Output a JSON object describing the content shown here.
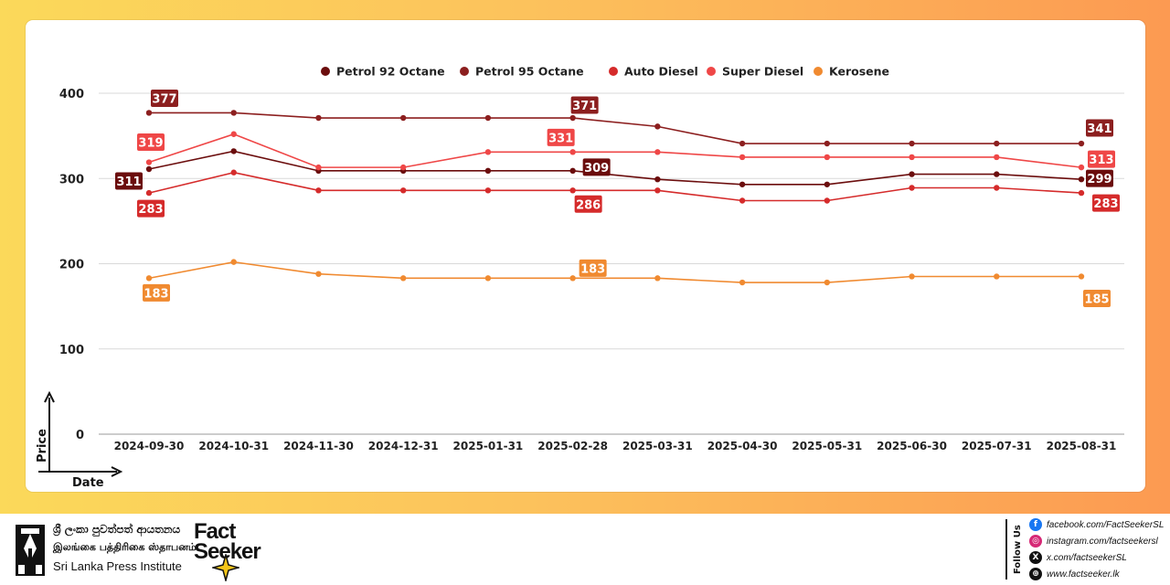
{
  "chart_data": {
    "type": "line",
    "x": [
      "2024-09-30",
      "2024-10-31",
      "2024-11-30",
      "2024-12-31",
      "2025-01-31",
      "2025-02-28",
      "2025-03-31",
      "2025-04-30",
      "2025-05-31",
      "2025-06-30",
      "2025-07-31",
      "2025-08-31"
    ],
    "series": [
      {
        "name": "Petrol 92 Octane",
        "color": "#6b0d0d",
        "values": [
          311,
          332,
          309,
          309,
          309,
          309,
          299,
          293,
          293,
          305,
          305,
          299
        ]
      },
      {
        "name": "Petrol 95 Octane",
        "color": "#8c1f1f",
        "values": [
          377,
          377,
          371,
          371,
          371,
          371,
          361,
          341,
          341,
          341,
          341,
          341
        ]
      },
      {
        "name": "Auto Diesel",
        "color": "#d52b2b",
        "values": [
          283,
          307,
          286,
          286,
          286,
          286,
          286,
          274,
          274,
          289,
          289,
          283
        ]
      },
      {
        "name": "Super Diesel",
        "color": "#ef4747",
        "values": [
          319,
          352,
          313,
          313,
          331,
          331,
          331,
          325,
          325,
          325,
          325,
          313
        ]
      },
      {
        "name": "Kerosene",
        "color": "#f08a30",
        "values": [
          183,
          202,
          188,
          183,
          183,
          183,
          183,
          178,
          178,
          185,
          185,
          185
        ]
      }
    ],
    "data_labels": [
      {
        "series": 0,
        "index": 0,
        "text": "311"
      },
      {
        "series": 0,
        "index": 5,
        "text": "309"
      },
      {
        "series": 0,
        "index": 11,
        "text": "299"
      },
      {
        "series": 1,
        "index": 0,
        "text": "377"
      },
      {
        "series": 1,
        "index": 5,
        "text": "371"
      },
      {
        "series": 1,
        "index": 11,
        "text": "341"
      },
      {
        "series": 2,
        "index": 0,
        "text": "283"
      },
      {
        "series": 2,
        "index": 5,
        "text": "286"
      },
      {
        "series": 2,
        "index": 11,
        "text": "283"
      },
      {
        "series": 3,
        "index": 0,
        "text": "319"
      },
      {
        "series": 3,
        "index": 5,
        "text": "331"
      },
      {
        "series": 3,
        "index": 11,
        "text": "313"
      },
      {
        "series": 4,
        "index": 0,
        "text": "183"
      },
      {
        "series": 4,
        "index": 5,
        "text": "183"
      },
      {
        "series": 4,
        "index": 11,
        "text": "185"
      }
    ],
    "yticks": [
      0,
      100,
      200,
      300,
      400
    ],
    "ylim": [
      0,
      400
    ],
    "xlabel": "Date",
    "ylabel": "Price",
    "grid": true,
    "legend_position": "top-center"
  },
  "footer": {
    "slpi_sinhala": "ශ්‍රී ලංකා පුවත්පත් ආයතනය",
    "slpi_tamil": "இலங்கை பத்திரிகை ஸ்தாபனம்",
    "slpi_english": "Sri Lanka Press Institute",
    "fact_seeker_line1": "Fact",
    "fact_seeker_line2": "Seeker",
    "follow_us": "Follow Us",
    "social": [
      {
        "icon": "facebook-icon",
        "color": "#1877f2",
        "glyph": "f",
        "text": "facebook.com/FactSeekerSL"
      },
      {
        "icon": "instagram-icon",
        "color": "#d62976",
        "glyph": "◎",
        "text": "instagram.com/factseekersl"
      },
      {
        "icon": "x-icon",
        "color": "#111111",
        "glyph": "X",
        "text": "x.com/factseekerSL"
      },
      {
        "icon": "globe-icon",
        "color": "#111111",
        "glyph": "⊕",
        "text": "www.factseeker.lk"
      }
    ]
  }
}
